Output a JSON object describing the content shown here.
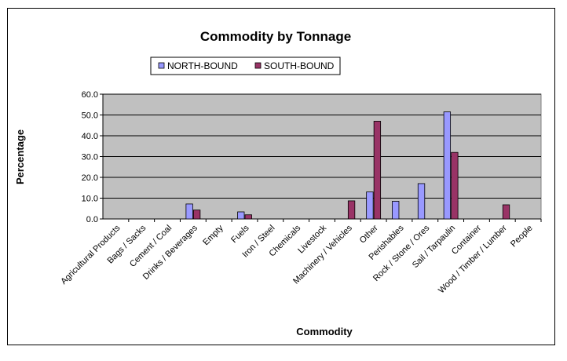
{
  "chart_data": {
    "type": "bar",
    "title": "Commodity by Tonnage",
    "xlabel": "Commodity",
    "ylabel": "Percentage",
    "ylim": [
      0,
      60
    ],
    "yticks": [
      "0.0",
      "10.0",
      "20.0",
      "30.0",
      "40.0",
      "50.0",
      "60.0"
    ],
    "grid": true,
    "legend_position": "top",
    "categories": [
      "Agricultural Products",
      "Bags / Sacks",
      "Cement / Coal",
      "Drinks / Beverages",
      "Empty",
      "Fuels",
      "Iron / Steel",
      "Chemicals",
      "Livestock",
      "Machinery / Vehicles",
      "Other",
      "Perishables",
      "Rock / Stone / Ores",
      "Sail / Tarpaulin",
      "Container",
      "Wood / Timber / Lumber",
      "People"
    ],
    "series": [
      {
        "name": "NORTH-BOUND",
        "color": "#9999ff",
        "values": [
          0,
          0,
          0,
          7.2,
          0,
          3.4,
          0,
          0,
          0,
          0,
          13.0,
          8.5,
          17.0,
          51.5,
          0,
          0,
          0
        ]
      },
      {
        "name": "SOUTH-BOUND",
        "color": "#993366",
        "values": [
          0,
          0,
          0,
          4.3,
          0,
          2.0,
          0,
          0,
          0,
          8.7,
          47.0,
          0,
          0,
          32.0,
          0,
          6.8,
          0
        ]
      }
    ],
    "plot_background": "#c0c0c0"
  }
}
